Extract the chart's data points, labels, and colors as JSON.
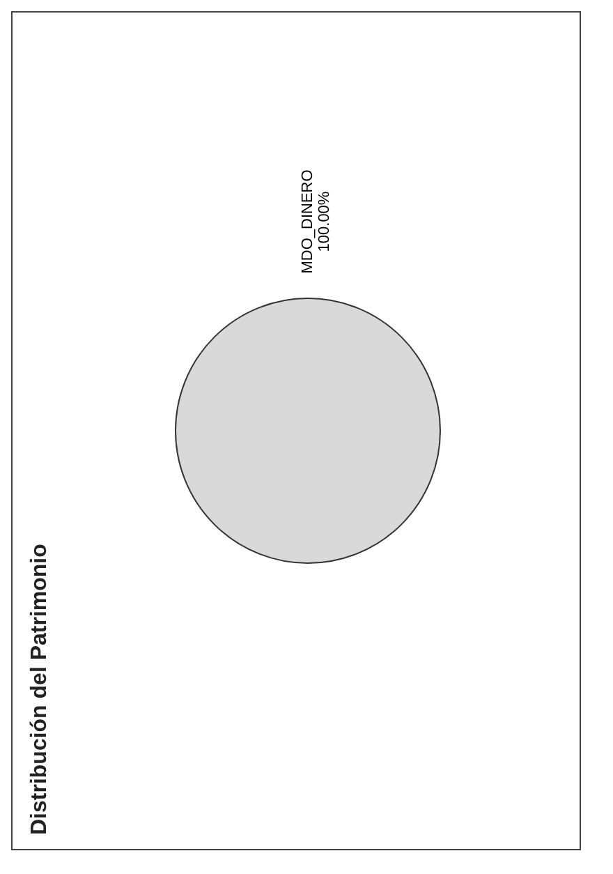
{
  "chart_data": {
    "type": "pie",
    "title": "Distribución del Patrimonio",
    "categories": [
      "MDO_DINERO"
    ],
    "values": [
      100
    ],
    "colors": [
      "#d9d9d9"
    ],
    "value_labels": [
      "100.00%"
    ],
    "legend": false
  }
}
